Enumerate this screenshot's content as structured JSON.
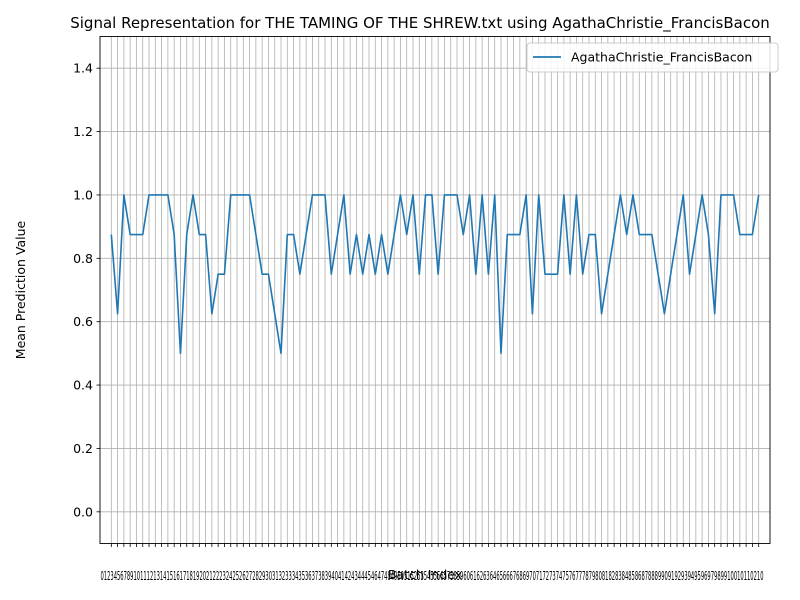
{
  "chart_data": {
    "type": "line",
    "title": "Signal Representation for THE TAMING OF THE SHREW.txt using AgathaChristie_FrancisBacon",
    "xlabel": "Batch Index",
    "ylabel": "Mean Prediction Value",
    "ylim": [
      -0.1,
      1.5
    ],
    "xlim": [
      -1.8,
      104.8
    ],
    "yticks": [
      "0.0",
      "0.2",
      "0.4",
      "0.6",
      "0.8",
      "1.0",
      "1.2",
      "1.4"
    ],
    "xtick_text": "012345678910111213141516171819202122232425262728293031323334353637383940414243444546474849505152535455565758596061626364656667686970717273747576777879808182838485868788899091929394959697989910010110210",
    "grid": true,
    "legend_position": "top-right",
    "series": [
      {
        "name": "AgathaChristie_FrancisBacon",
        "color": "#1f77b4",
        "x": [
          0,
          1,
          2,
          3,
          4,
          5,
          6,
          7,
          8,
          9,
          10,
          11,
          12,
          13,
          14,
          15,
          16,
          17,
          18,
          19,
          20,
          21,
          22,
          23,
          24,
          25,
          26,
          27,
          28,
          29,
          30,
          31,
          32,
          33,
          34,
          35,
          36,
          37,
          38,
          39,
          40,
          41,
          42,
          43,
          44,
          45,
          46,
          47,
          48,
          49,
          50,
          51,
          52,
          53,
          54,
          55,
          56,
          57,
          58,
          59,
          60,
          61,
          62,
          63,
          64,
          65,
          66,
          67,
          68,
          69,
          70,
          71,
          72,
          73,
          74,
          75,
          76,
          77,
          78,
          79,
          80,
          81,
          82,
          83,
          84,
          85,
          86,
          87,
          88,
          89,
          90,
          91,
          92,
          93,
          94,
          95,
          96,
          97,
          98,
          99,
          100,
          101,
          102,
          103
        ],
        "values": [
          0.875,
          0.625,
          1.0,
          0.875,
          0.875,
          0.875,
          1.0,
          1.0,
          1.0,
          1.0,
          0.875,
          0.5,
          0.875,
          1.0,
          0.875,
          0.875,
          0.625,
          0.75,
          0.75,
          1.0,
          1.0,
          1.0,
          1.0,
          0.875,
          0.75,
          0.75,
          0.625,
          0.5,
          0.875,
          0.875,
          0.75,
          0.875,
          1.0,
          1.0,
          1.0,
          0.75,
          0.875,
          1.0,
          0.75,
          0.875,
          0.75,
          0.875,
          0.75,
          0.875,
          0.75,
          0.875,
          1.0,
          0.875,
          1.0,
          0.75,
          1.0,
          1.0,
          0.75,
          1.0,
          1.0,
          1.0,
          0.875,
          1.0,
          0.75,
          1.0,
          0.75,
          1.0,
          0.5,
          0.875,
          0.875,
          0.875,
          1.0,
          0.625,
          1.0,
          0.75,
          0.75,
          0.75,
          1.0,
          0.75,
          1.0,
          0.75,
          0.875,
          0.875,
          0.625,
          0.75,
          0.875,
          1.0,
          0.875,
          1.0,
          0.875,
          0.875,
          0.875,
          0.75,
          0.625,
          0.75,
          0.875,
          1.0,
          0.75,
          0.875,
          1.0,
          0.875,
          0.625,
          1.0,
          1.0,
          1.0,
          0.875,
          0.875,
          0.875,
          1.0
        ]
      }
    ]
  }
}
